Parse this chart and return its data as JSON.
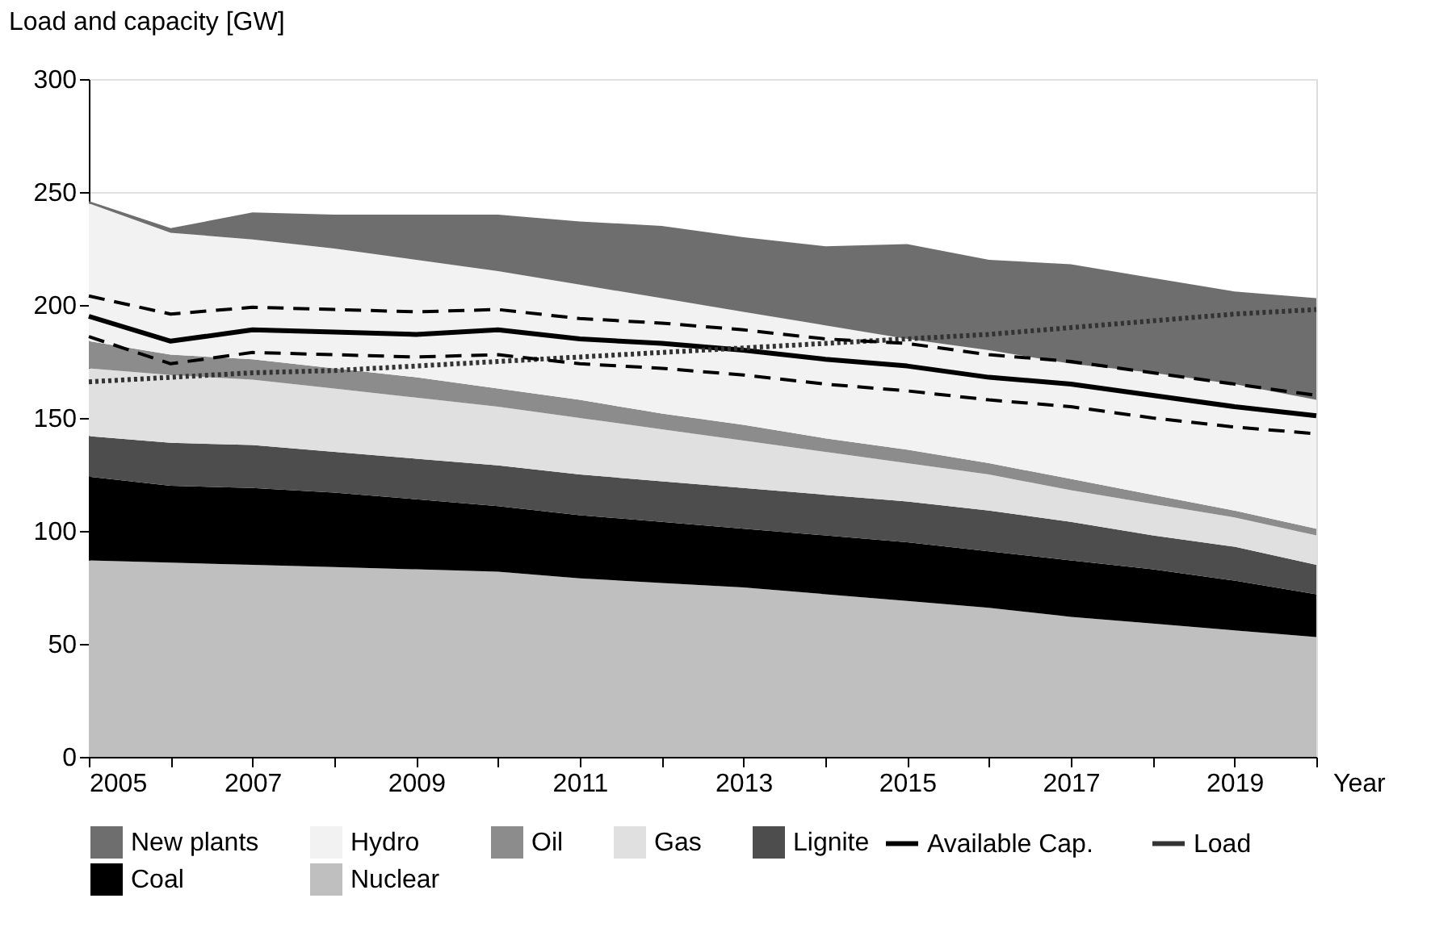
{
  "chart_data": {
    "type": "area",
    "stacked": true,
    "ylabel": "Load and capacity [GW]",
    "xlabel": "Year",
    "x": [
      2005,
      2006,
      2007,
      2008,
      2009,
      2010,
      2011,
      2012,
      2013,
      2014,
      2015,
      2016,
      2017,
      2018,
      2019,
      2020
    ],
    "xlim": [
      2005,
      2020
    ],
    "xticks": [
      2005,
      {
        "value": 2006,
        "label": null
      },
      2007,
      {
        "value": 2008,
        "label": null
      },
      2009,
      {
        "value": 2010,
        "label": null
      },
      2011,
      {
        "value": 2012,
        "label": null
      },
      2013,
      {
        "value": 2014,
        "label": null
      },
      2015,
      {
        "value": 2016,
        "label": null
      },
      2017,
      {
        "value": 2018,
        "label": null
      },
      2019,
      {
        "value": 2020,
        "label": null
      }
    ],
    "ylim": [
      0,
      300
    ],
    "yticks": [
      0,
      50,
      100,
      150,
      200,
      250,
      300
    ],
    "grid": "y",
    "legend": "bottom",
    "series": [
      {
        "name": "Nuclear",
        "color": "#bfbfbf",
        "values": [
          87,
          86,
          85,
          84,
          83,
          82,
          79,
          77,
          75,
          72,
          69,
          66,
          62,
          59,
          56,
          53
        ]
      },
      {
        "name": "Coal",
        "color": "#000000",
        "values": [
          37,
          34,
          34,
          33,
          31,
          29,
          28,
          27,
          26,
          26,
          26,
          25,
          25,
          24,
          22,
          19
        ]
      },
      {
        "name": "Lignite",
        "color": "#4d4d4d",
        "values": [
          18,
          19,
          19,
          18,
          18,
          18,
          18,
          18,
          18,
          18,
          18,
          18,
          17,
          15,
          15,
          13
        ]
      },
      {
        "name": "Gas",
        "color": "#e0e0e0",
        "values": [
          30,
          30,
          29,
          28,
          27,
          26,
          25,
          23,
          21,
          19,
          17,
          16,
          14,
          14,
          13,
          13
        ]
      },
      {
        "name": "Oil",
        "color": "#8c8c8c",
        "values": [
          12,
          9,
          9,
          9,
          9,
          8,
          8,
          7,
          7,
          6,
          6,
          5,
          5,
          4,
          3,
          3
        ]
      },
      {
        "name": "Hydro",
        "color": "#f2f2f2",
        "values": [
          61,
          54,
          53,
          53,
          52,
          52,
          51,
          51,
          50,
          50,
          49,
          50,
          51,
          54,
          56,
          57
        ]
      },
      {
        "name": "New plants",
        "color": "#6e6e6e",
        "values": [
          1,
          2,
          12,
          15,
          20,
          25,
          28,
          32,
          33,
          35,
          42,
          40,
          44,
          42,
          41,
          45
        ]
      },
      {
        "name": "Available Cap.",
        "type": "line",
        "color": "#000000",
        "line_style": "solid",
        "values": [
          195,
          184,
          189,
          188,
          187,
          189,
          185,
          183,
          180,
          176,
          173,
          168,
          165,
          160,
          155,
          151
        ]
      },
      {
        "name": "Load",
        "type": "line",
        "color": "#333333",
        "line_style": "dotted",
        "values": [
          166,
          168,
          170,
          171,
          173,
          175,
          177,
          179,
          181,
          183,
          185,
          187,
          190,
          193,
          196,
          198
        ]
      },
      {
        "type": "line",
        "color": "#000000",
        "line_style": "dashed",
        "values": [
          204,
          196,
          199,
          198,
          197,
          198,
          194,
          192,
          189,
          185,
          183,
          178,
          175,
          170,
          165,
          160
        ]
      },
      {
        "type": "line",
        "color": "#000000",
        "line_style": "dashed",
        "values": [
          186,
          174,
          179,
          178,
          177,
          178,
          174,
          172,
          169,
          165,
          162,
          158,
          155,
          150,
          146,
          143
        ]
      }
    ]
  }
}
